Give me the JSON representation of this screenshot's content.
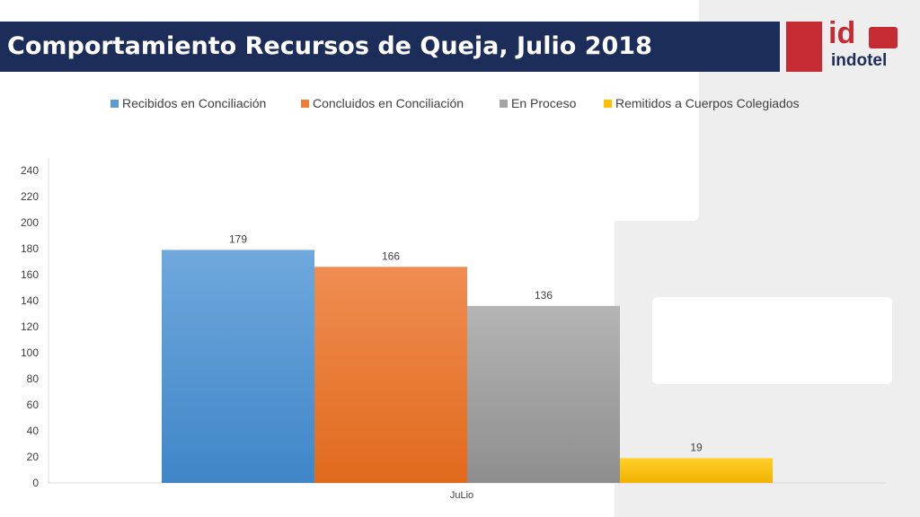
{
  "header": {
    "title": "Comportamiento Recursos de Queja, Julio 2018",
    "logo_wordmark": "indotel",
    "logo_glyph": "id"
  },
  "colors": {
    "title_bar": "#1d2d5a",
    "brand_red": "#c62a32",
    "series": [
      "#5b9bd5",
      "#ed7d31",
      "#a5a5a5",
      "#ffc000"
    ]
  },
  "chart_data": {
    "type": "bar",
    "categories": [
      "JuLio"
    ],
    "series": [
      {
        "name": "Recibidos en Conciliación",
        "values": [
          179
        ]
      },
      {
        "name": "Concluidos en Conciliación",
        "values": [
          166
        ]
      },
      {
        "name": "En Proceso",
        "values": [
          136
        ]
      },
      {
        "name": "Remitidos a Cuerpos Colegiados",
        "values": [
          19
        ]
      }
    ],
    "title": "",
    "xlabel": "",
    "ylabel": "",
    "ylim": [
      0,
      240
    ],
    "yticks": [
      0,
      20,
      40,
      60,
      80,
      100,
      120,
      140,
      160,
      180,
      200,
      220,
      240
    ],
    "grid": false,
    "legend": "top",
    "data_labels": true
  }
}
